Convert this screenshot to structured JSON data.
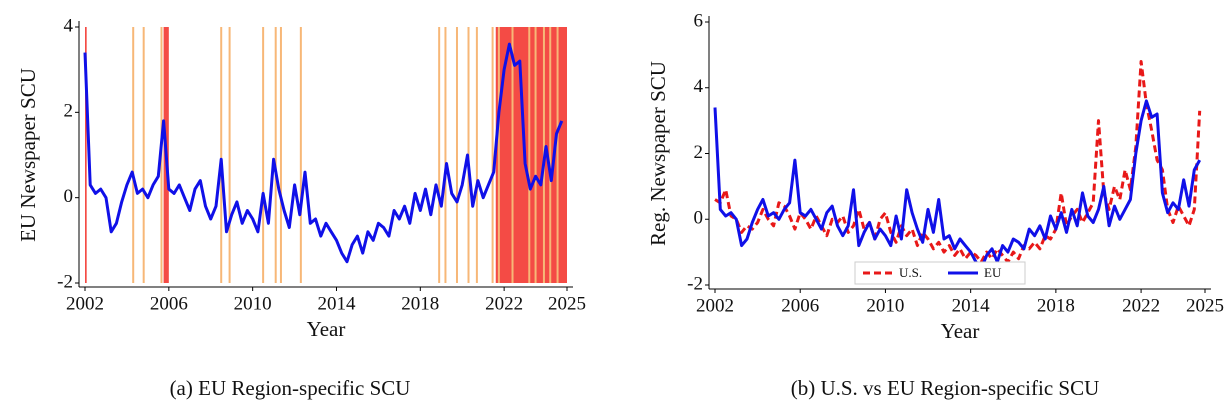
{
  "chart_data": [
    {
      "type": "line",
      "caption": "(a) EU Region-specific SCU",
      "x_label": "Year",
      "y_label": "EU Newspaper SCU",
      "xlim": [
        2002,
        2025
      ],
      "xticks": [
        2002,
        2006,
        2010,
        2014,
        2018,
        2022,
        2025
      ],
      "ylim": [
        -2,
        4
      ],
      "yticks": [
        -2,
        0,
        2,
        4
      ],
      "x": [
        2002,
        2002.25,
        2002.5,
        2002.75,
        2003,
        2003.25,
        2003.5,
        2003.75,
        2004,
        2004.25,
        2004.5,
        2004.75,
        2005,
        2005.25,
        2005.5,
        2005.75,
        2006,
        2006.25,
        2006.5,
        2006.75,
        2007,
        2007.25,
        2007.5,
        2007.75,
        2008,
        2008.25,
        2008.5,
        2008.75,
        2009,
        2009.25,
        2009.5,
        2009.75,
        2010,
        2010.25,
        2010.5,
        2010.75,
        2011,
        2011.25,
        2011.5,
        2011.75,
        2012,
        2012.25,
        2012.5,
        2012.75,
        2013,
        2013.25,
        2013.5,
        2013.75,
        2014,
        2014.25,
        2014.5,
        2014.75,
        2015,
        2015.25,
        2015.5,
        2015.75,
        2016,
        2016.25,
        2016.5,
        2016.75,
        2017,
        2017.25,
        2017.5,
        2017.75,
        2018,
        2018.25,
        2018.5,
        2018.75,
        2019,
        2019.25,
        2019.5,
        2019.75,
        2020,
        2020.25,
        2020.5,
        2020.75,
        2021,
        2021.25,
        2021.5,
        2021.75,
        2022,
        2022.25,
        2022.5,
        2022.75,
        2023,
        2023.25,
        2023.5,
        2023.75,
        2024,
        2024.25,
        2024.5,
        2024.75
      ],
      "series": [
        {
          "name": "EU",
          "color": "#1010e8",
          "dash": false,
          "values": [
            3.4,
            0.3,
            0.1,
            0.2,
            0.0,
            -0.8,
            -0.6,
            -0.1,
            0.3,
            0.6,
            0.1,
            0.2,
            0.0,
            0.3,
            0.5,
            1.8,
            0.2,
            0.1,
            0.3,
            0.0,
            -0.3,
            0.2,
            0.4,
            -0.2,
            -0.5,
            -0.2,
            0.9,
            -0.8,
            -0.4,
            -0.1,
            -0.6,
            -0.3,
            -0.5,
            -0.8,
            0.1,
            -0.6,
            0.9,
            0.2,
            -0.3,
            -0.7,
            0.3,
            -0.4,
            0.6,
            -0.6,
            -0.5,
            -0.9,
            -0.6,
            -0.8,
            -1.0,
            -1.3,
            -1.5,
            -1.1,
            -0.9,
            -1.3,
            -0.8,
            -1.0,
            -0.6,
            -0.7,
            -0.9,
            -0.3,
            -0.5,
            -0.2,
            -0.6,
            0.1,
            -0.3,
            0.2,
            -0.4,
            0.3,
            -0.2,
            0.8,
            0.1,
            -0.1,
            0.3,
            1.0,
            -0.2,
            0.4,
            0.0,
            0.3,
            0.6,
            2.0,
            3.0,
            3.6,
            3.1,
            3.2,
            0.8,
            0.2,
            0.5,
            0.3,
            1.2,
            0.4,
            1.5,
            1.8
          ]
        }
      ],
      "shaded_spans": {
        "color": "#f44b45",
        "spans": [
          [
            2002,
            2002.08
          ],
          [
            2005.75,
            2006.0
          ],
          [
            2021.6,
            2025
          ]
        ]
      },
      "event_lines": {
        "color": "#f7b777",
        "x": [
          2004.3,
          2004.8,
          2005.65,
          2008.5,
          2008.9,
          2010.5,
          2011.1,
          2011.35,
          2012.3,
          2018.9,
          2019.2,
          2019.75,
          2020.3,
          2020.7,
          2021.45,
          2021.75,
          2022.4,
          2023.2,
          2023.5,
          2023.9,
          2024.2,
          2024.55
        ]
      }
    },
    {
      "type": "line",
      "caption": "(b) U.S. vs EU Region-specific SCU",
      "x_label": "Year",
      "y_label": "Reg. Newspaper SCU",
      "xlim": [
        2002,
        2025
      ],
      "xticks": [
        2002,
        2006,
        2010,
        2014,
        2018,
        2022,
        2025
      ],
      "ylim": [
        -2,
        6
      ],
      "yticks": [
        -2,
        0,
        2,
        4,
        6
      ],
      "legend": "lower center",
      "x": [
        2002,
        2002.25,
        2002.5,
        2002.75,
        2003,
        2003.25,
        2003.5,
        2003.75,
        2004,
        2004.25,
        2004.5,
        2004.75,
        2005,
        2005.25,
        2005.5,
        2005.75,
        2006,
        2006.25,
        2006.5,
        2006.75,
        2007,
        2007.25,
        2007.5,
        2007.75,
        2008,
        2008.25,
        2008.5,
        2008.75,
        2009,
        2009.25,
        2009.5,
        2009.75,
        2010,
        2010.25,
        2010.5,
        2010.75,
        2011,
        2011.25,
        2011.5,
        2011.75,
        2012,
        2012.25,
        2012.5,
        2012.75,
        2013,
        2013.25,
        2013.5,
        2013.75,
        2014,
        2014.25,
        2014.5,
        2014.75,
        2015,
        2015.25,
        2015.5,
        2015.75,
        2016,
        2016.25,
        2016.5,
        2016.75,
        2017,
        2017.25,
        2017.5,
        2017.75,
        2018,
        2018.25,
        2018.5,
        2018.75,
        2019,
        2019.25,
        2019.5,
        2019.75,
        2020,
        2020.25,
        2020.5,
        2020.75,
        2021,
        2021.25,
        2021.5,
        2021.75,
        2022,
        2022.25,
        2022.5,
        2022.75,
        2023,
        2023.25,
        2023.5,
        2023.75,
        2024,
        2024.25,
        2024.5,
        2024.75
      ],
      "series": [
        {
          "name": "U.S.",
          "color": "#e81818",
          "dash": true,
          "values": [
            0.6,
            0.5,
            0.9,
            0.1,
            0.0,
            -0.4,
            -0.2,
            -0.3,
            -0.1,
            0.3,
            0.0,
            -0.2,
            0.5,
            0.4,
            0.1,
            -0.3,
            0.2,
            0.0,
            -0.3,
            0.1,
            -0.2,
            -0.5,
            0.0,
            -0.1,
            0.1,
            -0.4,
            -0.2,
            0.3,
            -0.3,
            -0.1,
            -0.6,
            0.0,
            0.2,
            -0.4,
            -0.7,
            -0.2,
            -0.5,
            -0.3,
            -0.8,
            -0.4,
            -0.6,
            -0.9,
            -0.7,
            -1.0,
            -0.8,
            -1.1,
            -0.9,
            -1.2,
            -1.0,
            -1.1,
            -1.3,
            -1.0,
            -1.2,
            -0.9,
            -1.1,
            -1.3,
            -1.0,
            -1.2,
            -0.8,
            -0.9,
            -0.7,
            -0.9,
            -0.5,
            -0.6,
            -0.3,
            0.8,
            -0.2,
            0.1,
            0.3,
            -0.1,
            0.2,
            0.5,
            3.0,
            0.8,
            0.3,
            1.0,
            0.6,
            1.5,
            0.9,
            2.2,
            4.8,
            3.5,
            2.7,
            1.8,
            1.5,
            0.3,
            -0.1,
            0.4,
            0.1,
            -0.2,
            0.3,
            3.3
          ]
        },
        {
          "name": "EU",
          "color": "#1010e8",
          "dash": false,
          "values": [
            3.4,
            0.3,
            0.1,
            0.2,
            0.0,
            -0.8,
            -0.6,
            -0.1,
            0.3,
            0.6,
            0.1,
            0.2,
            0.0,
            0.3,
            0.5,
            1.8,
            0.2,
            0.1,
            0.3,
            0.0,
            -0.3,
            0.2,
            0.4,
            -0.2,
            -0.5,
            -0.2,
            0.9,
            -0.8,
            -0.4,
            -0.1,
            -0.6,
            -0.3,
            -0.5,
            -0.8,
            0.1,
            -0.6,
            0.9,
            0.2,
            -0.3,
            -0.7,
            0.3,
            -0.4,
            0.6,
            -0.6,
            -0.5,
            -0.9,
            -0.6,
            -0.8,
            -1.0,
            -1.3,
            -1.5,
            -1.1,
            -0.9,
            -1.3,
            -0.8,
            -1.0,
            -0.6,
            -0.7,
            -0.9,
            -0.3,
            -0.5,
            -0.2,
            -0.6,
            0.1,
            -0.3,
            0.2,
            -0.4,
            0.3,
            -0.2,
            0.8,
            0.1,
            -0.1,
            0.3,
            1.0,
            -0.2,
            0.4,
            0.0,
            0.3,
            0.6,
            2.0,
            3.0,
            3.6,
            3.1,
            3.2,
            0.8,
            0.2,
            0.5,
            0.3,
            1.2,
            0.4,
            1.5,
            1.8
          ]
        }
      ]
    }
  ]
}
